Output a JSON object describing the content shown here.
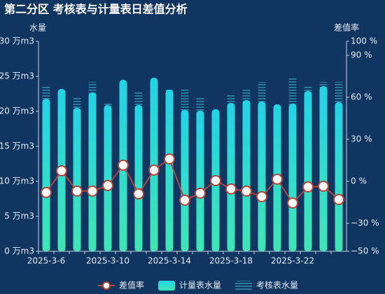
{
  "chart_data": {
    "type": "bar-line",
    "title": "第二分区 考核表与计量表日差值分析",
    "y_label": "水量",
    "y2_label": "差值率",
    "categories": [
      "2025-3-6",
      null,
      null,
      null,
      "2025-3-10",
      null,
      null,
      null,
      "2025-3-14",
      null,
      null,
      null,
      "2025-3-18",
      null,
      null,
      null,
      "2025-3-22",
      null,
      null,
      null
    ],
    "ylim": [
      0,
      30
    ],
    "yticks": [
      {
        "value": 0,
        "label": "0 万m3"
      },
      {
        "value": 5,
        "label": "5 万m3"
      },
      {
        "value": 10,
        "label": "10 万m3"
      },
      {
        "value": 15,
        "label": "15 万m3"
      },
      {
        "value": 20,
        "label": "20 万m3"
      },
      {
        "value": 25,
        "label": "25 万m3"
      },
      {
        "value": 30,
        "label": "30 万m3"
      }
    ],
    "y2lim": [
      -50,
      100
    ],
    "y2ticks": [
      {
        "value": -50,
        "label": "−50 %"
      },
      {
        "value": -30,
        "label": "−30 %"
      },
      {
        "value": 0,
        "label": "0 %"
      },
      {
        "value": 30,
        "label": "30 %"
      },
      {
        "value": 60,
        "label": "60 %"
      },
      {
        "value": 90,
        "label": "90 %"
      },
      {
        "value": 100,
        "label": "100 %"
      }
    ],
    "series": [
      {
        "name": "差值率",
        "type": "line",
        "axis": "y2",
        "color": "#b8443a",
        "values": [
          -8,
          7.5,
          -7,
          -7,
          -3,
          11.5,
          -9,
          8,
          16,
          -13.5,
          -8.5,
          0.5,
          -5.5,
          -7,
          -11,
          1.5,
          -15.5,
          -4,
          -3.5,
          -13
        ]
      },
      {
        "name": "计量表水量",
        "type": "bar",
        "color": "#2ee0c8",
        "values": [
          21.8,
          23.2,
          20.5,
          22.7,
          20.9,
          24.5,
          20.9,
          24.8,
          23.1,
          20.2,
          20.1,
          20.3,
          21.2,
          21.6,
          21.4,
          21.0,
          21.1,
          22.9,
          23.6,
          21.3
        ]
      },
      {
        "name": "考核表水量",
        "type": "stripe-bar",
        "color": "#2a7a9c",
        "values": [
          23.7,
          22.5,
          21.9,
          24.2,
          21.2,
          23.5,
          22.9,
          23.8,
          23.1,
          23.1,
          21.9,
          19.8,
          22.3,
          23.1,
          24.2,
          20.5,
          24.8,
          23.7,
          24.2,
          24.2
        ]
      }
    ]
  }
}
